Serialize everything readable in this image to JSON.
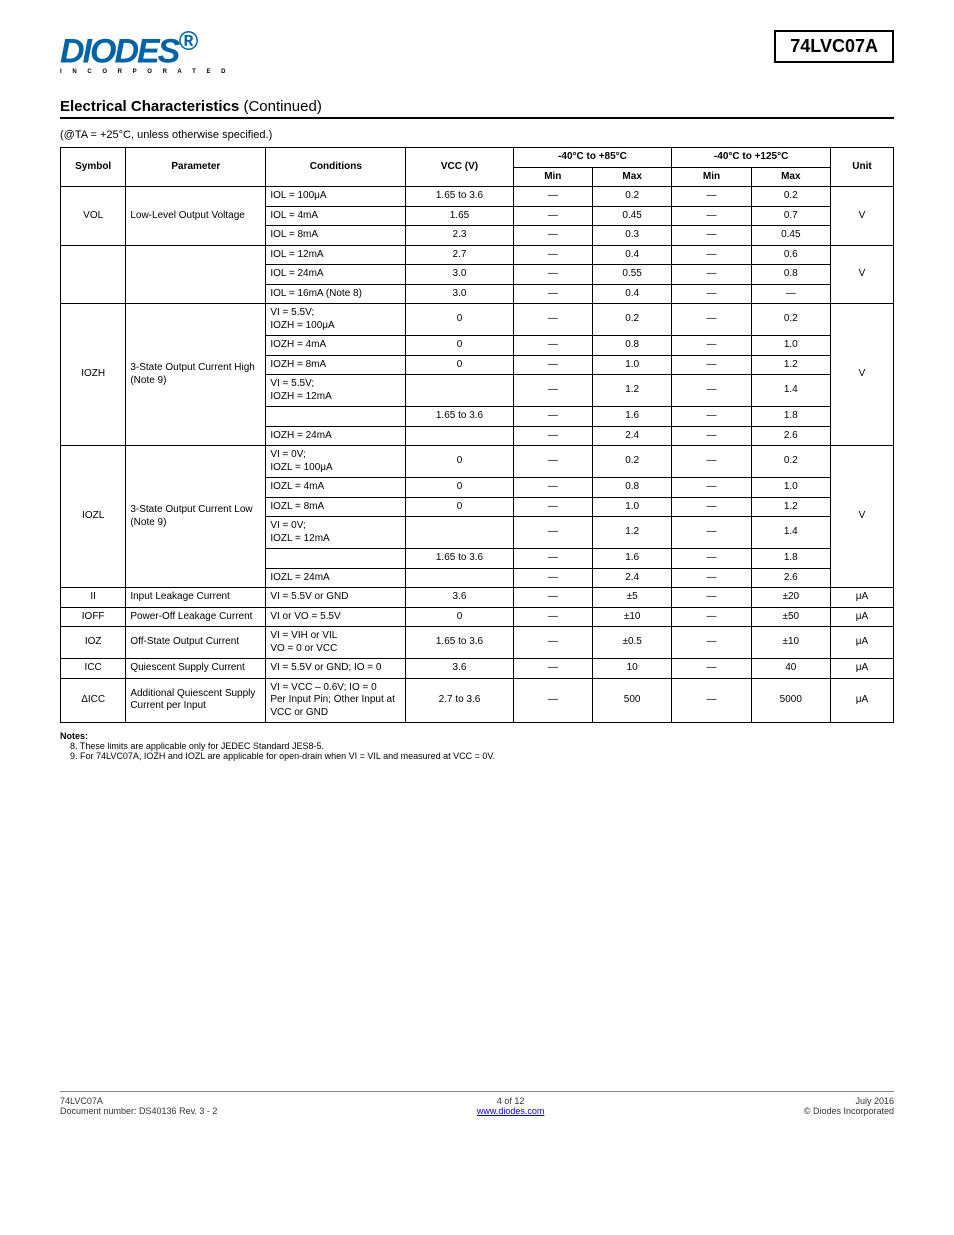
{
  "logo": {
    "main": "DIODES",
    "sub": "I N C O R P O R A T E D",
    "reg": "®"
  },
  "part_number": "74LVC07A",
  "section_title": "Electrical Characteristics",
  "section_cont": "(Continued)",
  "conditions_line": "(@TA = +25°C, unless otherwise specified.)",
  "columns": {
    "symbol": "Symbol",
    "parameter": "Parameter",
    "conditions": "Conditions",
    "vcc": "VCC (V)",
    "temp40_85": "-40°C to +85°C",
    "temp40_125": "-40°C to +125°C",
    "min": "Min",
    "max": "Max",
    "unit": "Unit"
  },
  "rows": [
    {
      "sym": "VOL",
      "param": "Low-Level Output Voltage",
      "sub": [
        {
          "cond": "IOL = 100μA",
          "vcc": "1.65 to 3.6",
          "min85": "—",
          "max85": "0.2",
          "min125": "—",
          "max125": "0.2"
        },
        {
          "cond": "IOL = 4mA",
          "vcc": "1.65",
          "min85": "—",
          "max85": "0.45",
          "min125": "—",
          "max125": "0.7"
        },
        {
          "cond": "IOL = 8mA",
          "vcc": "2.3",
          "min85": "—",
          "max85": "0.3",
          "min125": "—",
          "max125": "0.45"
        }
      ],
      "unit": "V"
    },
    {
      "sym": "",
      "param": "",
      "sub": [
        {
          "cond": "IOL = 12mA",
          "vcc": "2.7",
          "min85": "—",
          "max85": "0.4",
          "min125": "—",
          "max125": "0.6"
        },
        {
          "cond": "IOL = 24mA",
          "vcc": "3.0",
          "min85": "—",
          "max85": "0.55",
          "min125": "—",
          "max125": "0.8"
        },
        {
          "cond": "IOL = 16mA (Note 8)",
          "vcc": "3.0",
          "min85": "—",
          "max85": "0.4",
          "min125": "—",
          "max125": "—"
        }
      ],
      "unit": "V"
    },
    {
      "sym": "IOZH",
      "param": "3-State Output Current High (Note 9)",
      "sub": [
        {
          "cond": "VI = 5.5V;\nIOZH = 100μA",
          "vcc": "0",
          "min85": "—",
          "max85": "0.2",
          "min125": "—",
          "max125": "0.2"
        },
        {
          "cond": "IOZH = 4mA",
          "vcc": "0",
          "min85": "—",
          "max85": "0.8",
          "min125": "—",
          "max125": "1.0"
        },
        {
          "cond": "IOZH = 8mA",
          "vcc": "0",
          "min85": "—",
          "max85": "1.0",
          "min125": "—",
          "max125": "1.2"
        },
        {
          "cond": "VI = 5.5V;\nIOZH = 12mA",
          "vcc": "",
          "min85": "—",
          "max85": "1.2",
          "min125": "—",
          "max125": "1.4"
        },
        {
          "cond": "",
          "vcc": "1.65 to 3.6",
          "min85": "—",
          "max85": "1.6",
          "min125": "—",
          "max125": "1.8"
        },
        {
          "cond": "IOZH = 24mA",
          "vcc": "",
          "min85": "—",
          "max85": "2.4",
          "min125": "—",
          "max125": "2.6"
        }
      ],
      "unit": "V"
    },
    {
      "sym": "IOZL",
      "param": "3-State Output Current Low (Note 9)",
      "sub": [
        {
          "cond": "VI = 0V;\nIOZL = 100μA",
          "vcc": "0",
          "min85": "—",
          "max85": "0.2",
          "min125": "—",
          "max125": "0.2"
        },
        {
          "cond": "IOZL = 4mA",
          "vcc": "0",
          "min85": "—",
          "max85": "0.8",
          "min125": "—",
          "max125": "1.0"
        },
        {
          "cond": "IOZL = 8mA",
          "vcc": "0",
          "min85": "—",
          "max85": "1.0",
          "min125": "—",
          "max125": "1.2"
        },
        {
          "cond": "VI = 0V;\nIOZL = 12mA",
          "vcc": "",
          "min85": "—",
          "max85": "1.2",
          "min125": "—",
          "max125": "1.4"
        },
        {
          "cond": "",
          "vcc": "1.65 to 3.6",
          "min85": "—",
          "max85": "1.6",
          "min125": "—",
          "max125": "1.8"
        },
        {
          "cond": "IOZL = 24mA",
          "vcc": "",
          "min85": "—",
          "max85": "2.4",
          "min125": "—",
          "max125": "2.6"
        }
      ],
      "unit": "V"
    }
  ],
  "simple_rows": [
    {
      "sym": "II",
      "param": "Input Leakage Current",
      "cond": "VI = 5.5V or GND",
      "vcc": "3.6",
      "min85": "—",
      "max85": "±5",
      "min125": "—",
      "max125": "±20",
      "unit": "μA"
    },
    {
      "sym": "IOFF",
      "param": "Power-Off Leakage Current",
      "cond": "VI or VO = 5.5V",
      "vcc": "0",
      "min85": "—",
      "max85": "±10",
      "min125": "—",
      "max125": "±50",
      "unit": "μA"
    },
    {
      "sym": "IOZ",
      "param": "Off-State Output Current",
      "cond": "VI = VIH or VIL\nVO = 0 or VCC",
      "vcc": "1.65 to 3.6",
      "min85": "—",
      "max85": "±0.5",
      "min125": "—",
      "max125": "±10",
      "unit": "μA"
    },
    {
      "sym": "ICC",
      "param": "Quiescent Supply Current",
      "cond": "VI = 5.5V or GND; IO = 0",
      "vcc": "3.6",
      "min85": "—",
      "max85": "10",
      "min125": "—",
      "max125": "40",
      "unit": "μA"
    },
    {
      "sym": "ΔICC",
      "param": "Additional Quiescent Supply Current per Input",
      "cond": "VI = VCC – 0.6V; IO = 0\nPer Input Pin; Other Input at VCC or GND",
      "vcc": "2.7 to 3.6",
      "min85": "—",
      "max85": "500",
      "min125": "—",
      "max125": "5000",
      "unit": "μA"
    }
  ],
  "notes": [
    "8. These limits are applicable only for JEDEC Standard JES8-5.",
    "9. For 74LVC07A, IOZH and IOZL are applicable for open-drain when VI = VIL and measured at VCC = 0V."
  ],
  "footer": {
    "left1": "74LVC07A",
    "left2": "Document number: DS40136 Rev. 3 - 2",
    "mid1": "4 of 12",
    "mid2": "www.diodes.com",
    "right1": "July 2016",
    "right2": "© Diodes Incorporated"
  }
}
